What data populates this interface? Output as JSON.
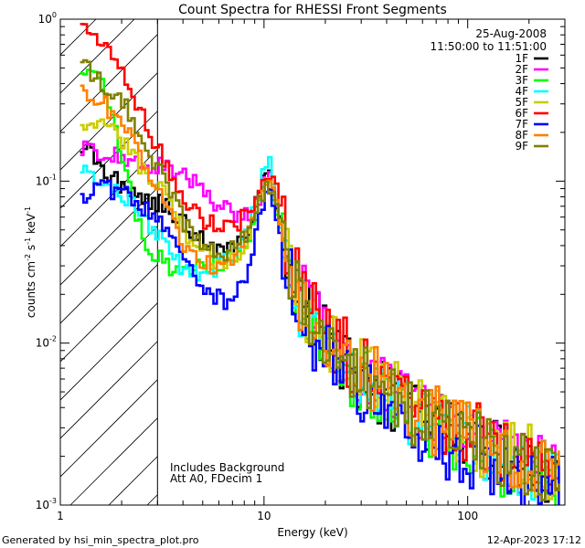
{
  "chart_data": {
    "type": "line",
    "title": "Count Spectra for RHESSI Front Segments",
    "xlabel": "Energy (keV)",
    "ylabel_parts": [
      "counts cm",
      "-2",
      " s",
      "-1",
      " keV",
      "-1"
    ],
    "xscale": "log",
    "yscale": "log",
    "xlim": [
      1,
      300
    ],
    "ylim": [
      0.001,
      1
    ],
    "x_ticks": [
      {
        "value": 1,
        "label": "1"
      },
      {
        "value": 10,
        "label": "10"
      },
      {
        "value": 100,
        "label": "100"
      }
    ],
    "y_ticks": [
      {
        "value": 0.001,
        "base": "10",
        "exp": "-3"
      },
      {
        "value": 0.01,
        "base": "10",
        "exp": "-2"
      },
      {
        "value": 0.1,
        "base": "10",
        "exp": "-1"
      },
      {
        "value": 1,
        "base": "10",
        "exp": "0"
      }
    ],
    "excluded_region": [
      1,
      3
    ],
    "date": "25-Aug-2008",
    "time_range": "11:50:00 to 11:51:00",
    "annotations": [
      "Includes Background",
      "Att A0, FDecim 1"
    ],
    "series": [
      {
        "name": "1F",
        "color": "#000000",
        "x": [
          1.25,
          1.6,
          2.0,
          2.5,
          3.2,
          4.0,
          5.0,
          6.5,
          8.0,
          9.2,
          10.3,
          11.5,
          13.0,
          15.0,
          18.0,
          22.0,
          27.0,
          33.0,
          40.0,
          50.0,
          65.0,
          85.0,
          110.0,
          150.0,
          200.0,
          280.0
        ],
        "y": [
          0.17,
          0.12,
          0.09,
          0.08,
          0.07,
          0.055,
          0.042,
          0.036,
          0.045,
          0.08,
          0.12,
          0.07,
          0.03,
          0.018,
          0.013,
          0.009,
          0.007,
          0.0055,
          0.0045,
          0.0038,
          0.0032,
          0.0027,
          0.0023,
          0.002,
          0.0017,
          0.0015
        ]
      },
      {
        "name": "2F",
        "color": "#ff00ff",
        "x": [
          1.25,
          1.6,
          2.0,
          2.5,
          3.2,
          4.0,
          5.0,
          6.5,
          8.0,
          9.2,
          10.3,
          11.5,
          13.0,
          15.0,
          18.0,
          22.0,
          27.0,
          33.0,
          40.0,
          50.0,
          65.0,
          85.0,
          110.0,
          150.0,
          200.0,
          280.0
        ],
        "y": [
          0.16,
          0.15,
          0.14,
          0.13,
          0.12,
          0.11,
          0.085,
          0.065,
          0.06,
          0.075,
          0.13,
          0.07,
          0.035,
          0.02,
          0.014,
          0.0095,
          0.0075,
          0.006,
          0.005,
          0.004,
          0.0033,
          0.0028,
          0.0024,
          0.0021,
          0.0018,
          0.0016
        ]
      },
      {
        "name": "3F",
        "color": "#00ff00",
        "x": [
          1.25,
          1.6,
          2.0,
          2.5,
          3.2,
          4.0,
          5.0,
          6.5,
          8.0,
          9.2,
          10.3,
          11.5,
          13.0,
          15.0,
          18.0,
          22.0,
          27.0,
          33.0,
          40.0,
          50.0,
          65.0,
          85.0,
          110.0,
          150.0,
          200.0,
          280.0
        ],
        "y": [
          0.5,
          0.4,
          0.13,
          0.045,
          0.03,
          0.028,
          0.03,
          0.032,
          0.04,
          0.07,
          0.11,
          0.06,
          0.028,
          0.016,
          0.011,
          0.0085,
          0.0065,
          0.005,
          0.0042,
          0.0035,
          0.003,
          0.0025,
          0.0021,
          0.0018,
          0.0016,
          0.0014
        ]
      },
      {
        "name": "4F",
        "color": "#00ffff",
        "x": [
          1.25,
          1.6,
          2.0,
          2.5,
          3.2,
          4.0,
          5.0,
          6.5,
          8.0,
          9.2,
          10.3,
          11.5,
          13.0,
          15.0,
          18.0,
          22.0,
          27.0,
          33.0,
          40.0,
          50.0,
          65.0,
          85.0,
          110.0,
          150.0,
          200.0,
          280.0
        ],
        "y": [
          0.12,
          0.1,
          0.08,
          0.06,
          0.04,
          0.028,
          0.026,
          0.033,
          0.045,
          0.09,
          0.15,
          0.065,
          0.03,
          0.017,
          0.012,
          0.009,
          0.007,
          0.0055,
          0.0046,
          0.0038,
          0.0032,
          0.0027,
          0.0023,
          0.002,
          0.0017,
          0.0015
        ]
      },
      {
        "name": "5F",
        "color": "#cccc00",
        "x": [
          1.25,
          1.6,
          2.0,
          2.5,
          3.2,
          4.0,
          5.0,
          6.5,
          8.0,
          9.2,
          10.3,
          11.5,
          13.0,
          15.0,
          18.0,
          22.0,
          27.0,
          33.0,
          40.0,
          50.0,
          65.0,
          85.0,
          110.0,
          150.0,
          200.0,
          280.0
        ],
        "y": [
          0.23,
          0.22,
          0.18,
          0.12,
          0.08,
          0.05,
          0.035,
          0.03,
          0.04,
          0.07,
          0.11,
          0.06,
          0.03,
          0.018,
          0.013,
          0.0095,
          0.0075,
          0.0062,
          0.0052,
          0.0042,
          0.0035,
          0.003,
          0.0025,
          0.0022,
          0.0019,
          0.0017
        ]
      },
      {
        "name": "6F",
        "color": "#ff0000",
        "x": [
          1.25,
          1.6,
          2.0,
          2.5,
          3.2,
          4.0,
          5.0,
          6.5,
          8.0,
          9.2,
          10.3,
          11.5,
          13.0,
          15.0,
          18.0,
          22.0,
          27.0,
          33.0,
          40.0,
          50.0,
          65.0,
          85.0,
          110.0,
          150.0,
          200.0,
          280.0
        ],
        "y": [
          0.95,
          0.7,
          0.45,
          0.25,
          0.13,
          0.075,
          0.058,
          0.052,
          0.06,
          0.09,
          0.12,
          0.09,
          0.035,
          0.02,
          0.014,
          0.01,
          0.0078,
          0.0063,
          0.0052,
          0.0043,
          0.0036,
          0.003,
          0.0026,
          0.0022,
          0.0019,
          0.0017
        ]
      },
      {
        "name": "7F",
        "color": "#0000ff",
        "x": [
          1.25,
          1.6,
          2.0,
          2.5,
          3.2,
          4.0,
          5.0,
          6.5,
          8.0,
          9.2,
          10.3,
          11.5,
          13.0,
          15.0,
          18.0,
          22.0,
          27.0,
          33.0,
          40.0,
          50.0,
          65.0,
          85.0,
          110.0,
          150.0,
          200.0,
          280.0
        ],
        "y": [
          0.083,
          0.09,
          0.085,
          0.07,
          0.05,
          0.035,
          0.022,
          0.017,
          0.025,
          0.055,
          0.09,
          0.05,
          0.025,
          0.014,
          0.0095,
          0.007,
          0.0055,
          0.0044,
          0.0037,
          0.0031,
          0.0026,
          0.0022,
          0.0019,
          0.0016,
          0.0014,
          0.0012
        ]
      },
      {
        "name": "8F",
        "color": "#ff8000",
        "x": [
          1.25,
          1.6,
          2.0,
          2.5,
          3.2,
          4.0,
          5.0,
          6.5,
          8.0,
          9.2,
          10.3,
          11.5,
          13.0,
          15.0,
          18.0,
          22.0,
          27.0,
          33.0,
          40.0,
          50.0,
          65.0,
          85.0,
          110.0,
          150.0,
          200.0,
          280.0
        ],
        "y": [
          0.38,
          0.3,
          0.22,
          0.13,
          0.07,
          0.04,
          0.03,
          0.03,
          0.045,
          0.08,
          0.11,
          0.065,
          0.03,
          0.018,
          0.013,
          0.0095,
          0.0075,
          0.006,
          0.005,
          0.0041,
          0.0034,
          0.0029,
          0.0024,
          0.0021,
          0.0018,
          0.0016
        ]
      },
      {
        "name": "9F",
        "color": "#808000",
        "x": [
          1.25,
          1.6,
          2.0,
          2.5,
          3.2,
          4.0,
          5.0,
          6.5,
          8.0,
          9.2,
          10.3,
          11.5,
          13.0,
          15.0,
          18.0,
          22.0,
          27.0,
          33.0,
          40.0,
          50.0,
          65.0,
          85.0,
          110.0,
          150.0,
          200.0,
          280.0
        ],
        "y": [
          0.52,
          0.4,
          0.3,
          0.18,
          0.1,
          0.055,
          0.04,
          0.035,
          0.045,
          0.07,
          0.1,
          0.06,
          0.03,
          0.017,
          0.012,
          0.009,
          0.0072,
          0.0058,
          0.0048,
          0.004,
          0.0033,
          0.0028,
          0.0023,
          0.002,
          0.0017,
          0.0015
        ]
      }
    ]
  },
  "footer": {
    "generated_by": "Generated by hsi_min_spectra_plot.pro",
    "timestamp": "12-Apr-2023 17:12"
  }
}
